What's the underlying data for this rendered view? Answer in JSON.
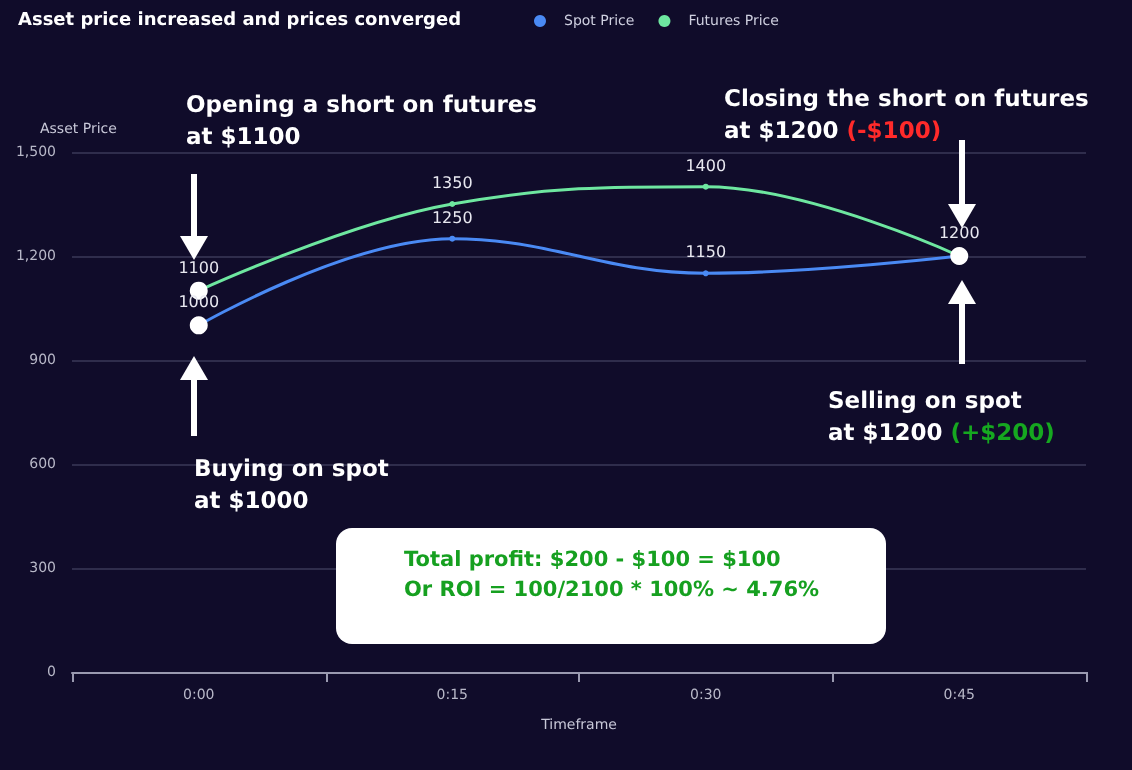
{
  "chart_data": {
    "type": "line",
    "title": "Asset price increased and prices converged",
    "xlabel": "Timeframe",
    "ylabel": "Asset Price",
    "categories": [
      "0:00",
      "0:15",
      "0:30",
      "0:45"
    ],
    "series": [
      {
        "name": "Spot Price",
        "color": "#4a8af4",
        "values": [
          1000,
          1250,
          1150,
          1200
        ],
        "value_labels": [
          null,
          "1250",
          "1150",
          null
        ]
      },
      {
        "name": "Futures Price",
        "color": "#6ee7a0",
        "values": [
          1100,
          1350,
          1400,
          1200
        ],
        "value_labels": [
          null,
          "1350",
          "1400",
          null
        ]
      },
      {
        "type": "scatter",
        "color": "#ffffff",
        "x": [
          "0:00",
          "0:00",
          "0:45"
        ],
        "values": [
          1000,
          1100,
          1200
        ],
        "value_labels": [
          "1000",
          "1100",
          "1200"
        ]
      }
    ],
    "ylim": [
      0,
      1500
    ],
    "yticks": [
      0,
      300,
      600,
      900,
      {
        "value": 1200,
        "label": "1,200"
      },
      {
        "value": 1500,
        "label": "1,500"
      }
    ],
    "grid": "y",
    "legend": "top",
    "marker": "circle",
    "annotations": [
      "Opening a short on futures\nat $1100",
      "Closing the short on futures\nat $1200 (-$100)",
      "Buying on spot\nat $1000",
      "Selling on spot\nat $1200 (+$200)",
      "Total profit: $200 - $100 = $100\nOr ROI = 100/2100 * 100% ~ 4.76%"
    ]
  }
}
